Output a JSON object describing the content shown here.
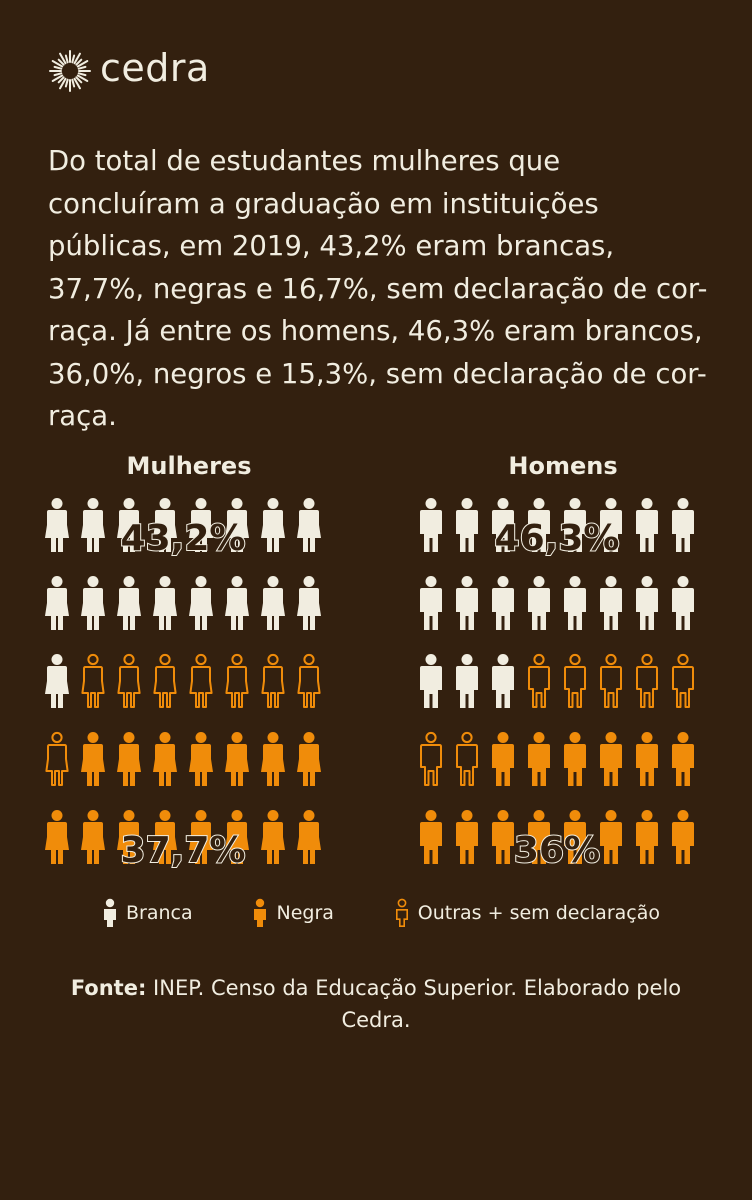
{
  "brand": "cedra",
  "intro": "Do total de estudantes mulheres que concluíram a graduação em instituições públicas, em 2019, 43,2% eram brancas, 37,7%, negras e 16,7%, sem declaração de cor-raça. Já entre os homens, 46,3% eram brancos, 36,0%, negros e 15,3%, sem declaração de cor-raça.",
  "colors": {
    "background": "#33200f",
    "branca": "#f1ede0",
    "negra": "#f08c0a",
    "outline": "#f08c0a"
  },
  "chart_data": [
    {
      "type": "pictogram",
      "title": "Mulheres",
      "icon": "female-figure-icon",
      "total_icons": 40,
      "series": [
        {
          "name": "Branca",
          "value": 43.2,
          "icons": 17
        },
        {
          "name": "Outras + sem declaração",
          "value": 16.7,
          "icons": 8
        },
        {
          "name": "Negra",
          "value": 37.7,
          "icons": 15
        }
      ],
      "labels": {
        "top": "43,2%",
        "bottom": "37,7%"
      }
    },
    {
      "type": "pictogram",
      "title": "Homens",
      "icon": "male-figure-icon",
      "total_icons": 40,
      "series": [
        {
          "name": "Branca",
          "value": 46.3,
          "icons": 19
        },
        {
          "name": "Outras + sem declaração",
          "value": 15.3,
          "icons": 7
        },
        {
          "name": "Negra",
          "value": 36.0,
          "icons": 14
        }
      ],
      "labels": {
        "top": "46,3%",
        "bottom": "36%"
      }
    }
  ],
  "legend": [
    {
      "label": "Branca",
      "style": "solid-white"
    },
    {
      "label": "Negra",
      "style": "solid-orange"
    },
    {
      "label": "Outras + sem declaração",
      "style": "outline-orange"
    }
  ],
  "source": {
    "prefix": "Fonte:",
    "text": " INEP. Censo da Educação Superior. Elaborado pelo Cedra."
  }
}
